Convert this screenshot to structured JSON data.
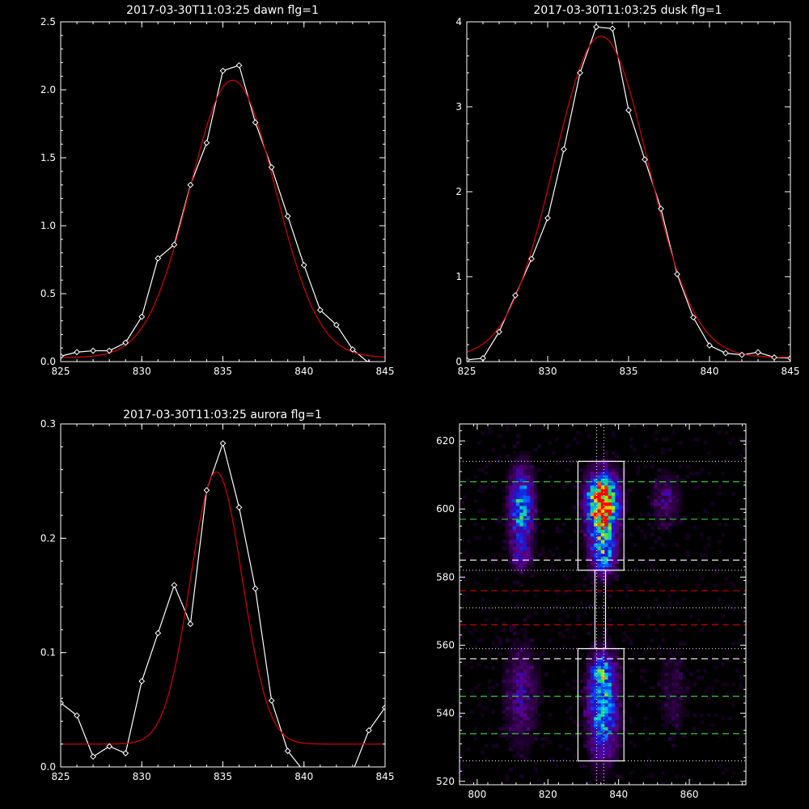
{
  "colors": {
    "background": "#000000",
    "axes": "#ffffff",
    "data_line": "#ffffff",
    "fit_line": "#cc0000",
    "green_dash": "#33cc33",
    "red_dash": "#cc0000",
    "white_dash": "#ffffff"
  },
  "chart_data": [
    {
      "id": "dawn",
      "type": "line",
      "title": "2017-03-30T11:03:25 dawn flg=1",
      "xlim": [
        825,
        845
      ],
      "ylim": [
        0,
        2.5
      ],
      "xticks": [
        825,
        830,
        835,
        840,
        845
      ],
      "yticks": [
        0,
        0.5,
        1.0,
        1.5,
        2.0,
        2.5
      ],
      "xtick_labels": [
        "825",
        "830",
        "835",
        "840",
        "845"
      ],
      "ytick_labels": [
        "0.0",
        "0.5",
        "1.0",
        "1.5",
        "2.0",
        "2.5"
      ],
      "series": [
        {
          "kind": "data",
          "marker": "diamond",
          "x": [
            825,
            826,
            827,
            828,
            829,
            830,
            831,
            832,
            833,
            834,
            835,
            836,
            837,
            838,
            839,
            840,
            841,
            842,
            843,
            844,
            845
          ],
          "y": [
            0.04,
            0.07,
            0.08,
            0.08,
            0.14,
            0.33,
            0.76,
            0.86,
            1.3,
            1.61,
            2.14,
            2.18,
            1.76,
            1.43,
            1.07,
            0.71,
            0.38,
            0.27,
            0.09,
            -0.01,
            -0.03
          ]
        },
        {
          "kind": "fit",
          "model": "gaussian",
          "amplitude": 2.04,
          "center": 835.6,
          "sigma": 2.65,
          "offset": 0.03
        }
      ]
    },
    {
      "id": "dusk",
      "type": "line",
      "title": "2017-03-30T11:03:25 dusk flg=1",
      "xlim": [
        825,
        845
      ],
      "ylim": [
        0,
        4
      ],
      "xticks": [
        825,
        830,
        835,
        840,
        845
      ],
      "yticks": [
        0,
        1,
        2,
        3,
        4
      ],
      "xtick_labels": [
        "825",
        "830",
        "835",
        "840",
        "845"
      ],
      "ytick_labels": [
        "0",
        "1",
        "2",
        "3",
        "4"
      ],
      "series": [
        {
          "kind": "data",
          "marker": "diamond",
          "x": [
            825,
            826,
            827,
            828,
            829,
            830,
            831,
            832,
            833,
            834,
            835,
            836,
            837,
            838,
            839,
            840,
            841,
            842,
            843,
            844,
            845
          ],
          "y": [
            0.02,
            0.04,
            0.35,
            0.78,
            1.21,
            1.69,
            2.5,
            3.4,
            3.94,
            3.92,
            2.96,
            2.38,
            1.8,
            1.03,
            0.52,
            0.19,
            0.1,
            0.08,
            0.11,
            0.05,
            0.04
          ]
        },
        {
          "kind": "fit",
          "model": "gaussian",
          "amplitude": 3.78,
          "center": 833.3,
          "sigma": 2.9,
          "offset": 0.05
        }
      ]
    },
    {
      "id": "aurora",
      "type": "line",
      "title": "2017-03-30T11:03:25 aurora flg=1",
      "xlim": [
        825,
        845
      ],
      "ylim": [
        0,
        0.3
      ],
      "xticks": [
        825,
        830,
        835,
        840,
        845
      ],
      "yticks": [
        0,
        0.1,
        0.2,
        0.3
      ],
      "xtick_labels": [
        "825",
        "830",
        "835",
        "840",
        "845"
      ],
      "ytick_labels": [
        "0.0",
        "0.1",
        "0.2",
        "0.3"
      ],
      "series": [
        {
          "kind": "data",
          "marker": "diamond",
          "x": [
            825,
            826,
            827,
            828,
            829,
            830,
            831,
            832,
            833,
            834,
            835,
            836,
            837,
            838,
            839,
            840,
            841,
            842,
            843,
            844,
            845
          ],
          "y": [
            0.056,
            0.045,
            0.009,
            0.018,
            0.012,
            0.075,
            0.117,
            0.159,
            0.125,
            0.242,
            0.283,
            0.227,
            0.156,
            0.058,
            0.014,
            -0.004,
            -0.004,
            -0.004,
            -0.004,
            0.032,
            0.052
          ]
        },
        {
          "kind": "fit",
          "model": "gaussian",
          "amplitude": 0.238,
          "center": 834.6,
          "sigma": 1.6,
          "offset": 0.02
        }
      ]
    },
    {
      "id": "image",
      "type": "heatmap",
      "title": "",
      "xlim": [
        795,
        876
      ],
      "ylim": [
        519,
        625
      ],
      "xticks": [
        800,
        820,
        840,
        860
      ],
      "yticks": [
        520,
        540,
        560,
        580,
        600,
        620
      ],
      "xtick_labels": [
        "800",
        "820",
        "840",
        "860"
      ],
      "ytick_labels": [
        "520",
        "540",
        "560",
        "580",
        "600",
        "620"
      ],
      "grid_dx": 1,
      "grid_dy": 1,
      "blobs": [
        {
          "x": 812,
          "y": 600,
          "sx": 2.2,
          "sy": 7,
          "amp": 0.55
        },
        {
          "x": 812,
          "y": 586,
          "sx": 2,
          "sy": 3,
          "amp": 0.2
        },
        {
          "x": 835,
          "y": 602,
          "sx": 2.8,
          "sy": 5,
          "amp": 1.0
        },
        {
          "x": 835,
          "y": 593,
          "sx": 2.5,
          "sy": 7,
          "amp": 0.5
        },
        {
          "x": 835,
          "y": 585,
          "sx": 2,
          "sy": 3,
          "amp": 0.25
        },
        {
          "x": 835,
          "y": 541,
          "sx": 2.6,
          "sy": 9,
          "amp": 0.58
        },
        {
          "x": 835,
          "y": 552,
          "sx": 2,
          "sy": 3,
          "amp": 0.3
        },
        {
          "x": 853,
          "y": 602,
          "sx": 2.5,
          "sy": 5,
          "amp": 0.17
        },
        {
          "x": 812,
          "y": 545,
          "sx": 3,
          "sy": 10,
          "amp": 0.18
        },
        {
          "x": 855,
          "y": 545,
          "sx": 3,
          "sy": 9,
          "amp": 0.08
        }
      ],
      "hot_pixel": {
        "x": 834,
        "y": 602
      },
      "boxes": [
        {
          "x0": 828.5,
          "x1": 841.5,
          "y0": 582,
          "y1": 614
        },
        {
          "x0": 828.5,
          "x1": 841.5,
          "y0": 526,
          "y1": 559
        },
        {
          "x0": 833.3,
          "x1": 836.3,
          "y0": 559,
          "y1": 582
        }
      ],
      "dotted_hlines": [
        614,
        582,
        571,
        559,
        526
      ],
      "dotted_vlines": [
        833.8,
        835.8
      ],
      "green_dash_hlines": [
        608,
        597,
        545,
        534
      ],
      "white_dash_hlines": [
        585,
        556
      ],
      "red_dash_hlines": [
        576,
        566
      ]
    }
  ]
}
